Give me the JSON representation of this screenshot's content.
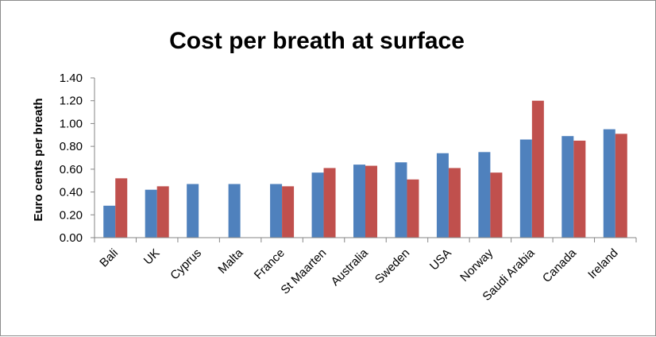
{
  "chart_data": {
    "type": "bar",
    "title": "Cost per breath at surface",
    "xlabel": "",
    "ylabel": "Euro cents per breath",
    "ylim": [
      0,
      1.4
    ],
    "yticks": [
      "0.00",
      "0.20",
      "0.40",
      "0.60",
      "0.80",
      "1.00",
      "1.20",
      "1.40"
    ],
    "grid": false,
    "legend": "none",
    "categories": [
      "Bali",
      "UK",
      "Cyprus",
      "Malta",
      "France",
      "St Maarten",
      "Australia",
      "Sweden",
      "USA",
      "Norway",
      "Saudi Arabia",
      "Canada",
      "Ireland"
    ],
    "series": [
      {
        "color": "#4f81bd",
        "values": [
          0.28,
          0.42,
          0.47,
          0.47,
          0.47,
          0.57,
          0.64,
          0.66,
          0.74,
          0.75,
          0.86,
          0.89,
          0.95
        ]
      },
      {
        "color": "#c0504d",
        "values": [
          0.52,
          0.45,
          null,
          null,
          0.45,
          0.61,
          0.63,
          0.51,
          0.61,
          0.57,
          1.2,
          0.85,
          0.91
        ]
      }
    ]
  }
}
